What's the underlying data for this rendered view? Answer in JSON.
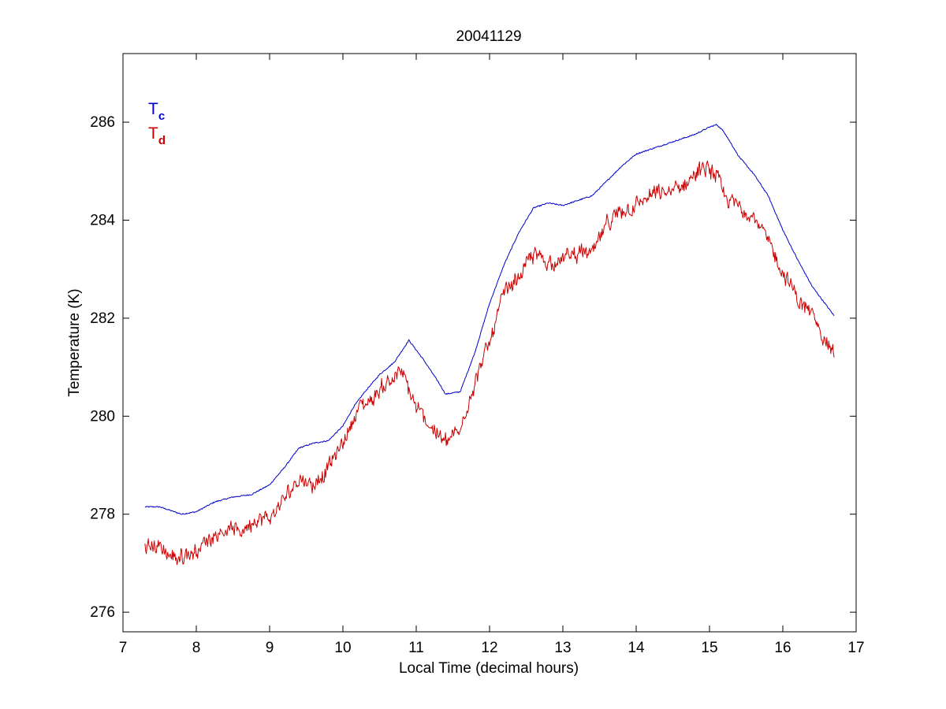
{
  "chart_data": {
    "type": "line",
    "title": "20041129",
    "xlabel": "Local Time (decimal hours)",
    "ylabel": "Temperature (K)",
    "xlim": [
      7,
      17
    ],
    "ylim": [
      275.6,
      287.4
    ],
    "xticks": [
      7,
      8,
      9,
      10,
      11,
      12,
      13,
      14,
      15,
      16,
      17
    ],
    "yticks": [
      276,
      278,
      280,
      282,
      284,
      286
    ],
    "grid": false,
    "legend": {
      "placement": "top-left",
      "entries": [
        {
          "base": "T",
          "sub": "c",
          "color": "#0000cc"
        },
        {
          "base": "T",
          "sub": "d",
          "color": "#cc0000"
        }
      ]
    },
    "series": [
      {
        "color": "#0000cc",
        "style": "smooth",
        "x": [
          7.3,
          7.5,
          7.6,
          7.8,
          8.0,
          8.25,
          8.5,
          8.75,
          9.0,
          9.2,
          9.4,
          9.6,
          9.8,
          10.0,
          10.15,
          10.3,
          10.5,
          10.7,
          10.9,
          11.1,
          11.3,
          11.4,
          11.6,
          11.8,
          12.0,
          12.2,
          12.4,
          12.6,
          12.8,
          13.0,
          13.2,
          13.4,
          13.6,
          13.8,
          14.0,
          14.2,
          14.4,
          14.6,
          14.8,
          15.0,
          15.1,
          15.2,
          15.4,
          15.6,
          15.8,
          16.0,
          16.2,
          16.4,
          16.6,
          16.7
        ],
        "y": [
          278.15,
          278.15,
          278.1,
          278.0,
          278.05,
          278.25,
          278.35,
          278.4,
          278.6,
          278.95,
          279.35,
          279.45,
          279.5,
          279.8,
          280.2,
          280.5,
          280.85,
          281.1,
          281.55,
          281.15,
          280.7,
          280.45,
          280.5,
          281.3,
          282.3,
          283.1,
          283.75,
          284.25,
          284.35,
          284.3,
          284.4,
          284.5,
          284.8,
          285.1,
          285.35,
          285.45,
          285.55,
          285.65,
          285.75,
          285.9,
          285.95,
          285.8,
          285.3,
          284.95,
          284.5,
          283.8,
          283.2,
          282.65,
          282.25,
          282.05
        ]
      },
      {
        "color": "#cc0000",
        "style": "noisy",
        "x": [
          7.3,
          7.5,
          7.6,
          7.7,
          8.0,
          8.2,
          8.4,
          8.6,
          8.8,
          9.0,
          9.2,
          9.4,
          9.6,
          9.8,
          10.0,
          10.2,
          10.4,
          10.6,
          10.8,
          11.0,
          11.2,
          11.4,
          11.5,
          11.6,
          11.7,
          11.8,
          12.0,
          12.2,
          12.4,
          12.6,
          12.8,
          13.0,
          13.2,
          13.4,
          13.6,
          13.8,
          14.0,
          14.2,
          14.4,
          14.6,
          14.8,
          15.0,
          15.1,
          15.2,
          15.4,
          15.6,
          15.8,
          16.0,
          16.2,
          16.4,
          16.6,
          16.7
        ],
        "y": [
          277.35,
          277.35,
          277.2,
          277.1,
          277.25,
          277.55,
          277.7,
          277.65,
          277.9,
          277.9,
          278.3,
          278.75,
          278.6,
          278.95,
          279.45,
          280.15,
          280.35,
          280.7,
          280.9,
          280.15,
          279.8,
          279.45,
          279.6,
          279.65,
          280.3,
          280.7,
          281.5,
          282.5,
          282.85,
          283.3,
          283.15,
          283.2,
          283.35,
          283.3,
          283.9,
          284.2,
          284.3,
          284.5,
          284.55,
          284.65,
          284.95,
          285.05,
          284.9,
          284.45,
          284.3,
          284.1,
          283.55,
          282.95,
          282.4,
          282.05,
          281.55,
          281.2
        ]
      }
    ]
  }
}
